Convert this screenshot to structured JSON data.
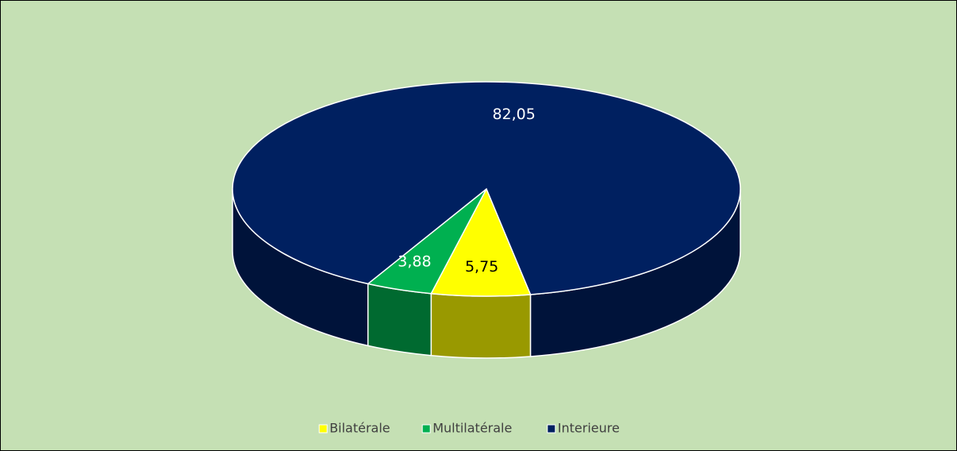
{
  "chart_data": {
    "type": "pie3d",
    "categories": [
      "Bilatérale",
      "Multilatérale",
      "Interieure"
    ],
    "values": [
      5.75,
      3.88,
      82.05
    ],
    "value_labels": [
      "5,75",
      "3,88",
      "82,05"
    ],
    "colors": [
      "#ffff00",
      "#00b050",
      "#002060"
    ],
    "legend": "bottom"
  }
}
